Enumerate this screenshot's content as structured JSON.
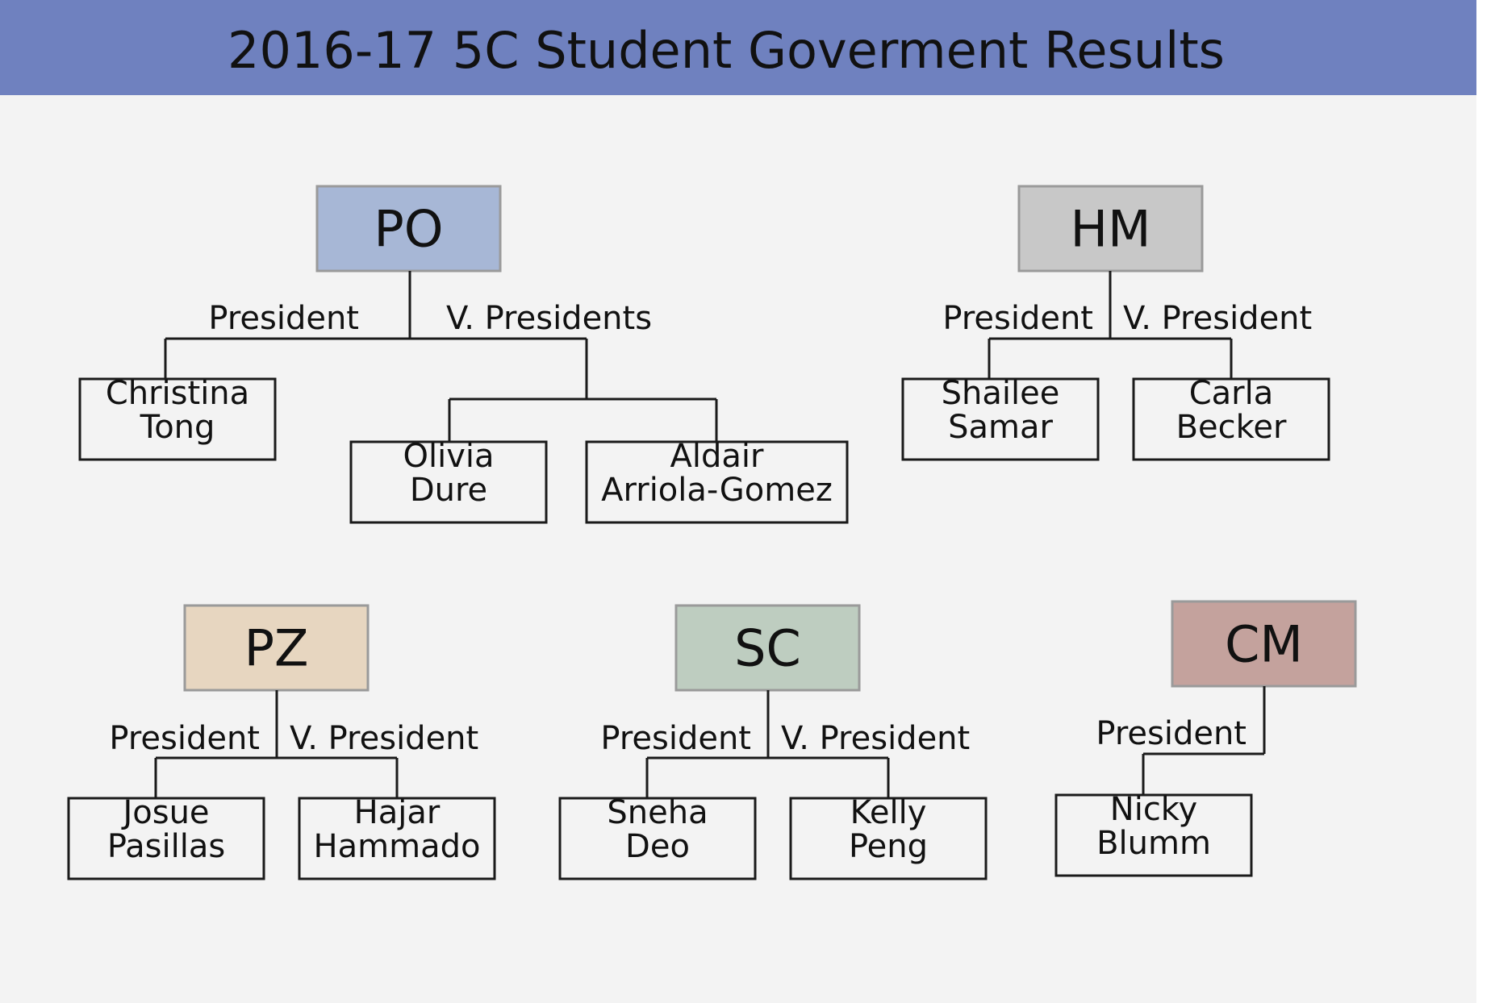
{
  "title": "2016-17 5C Student Goverment Results",
  "colors": {
    "header_band": "#6F81BF",
    "canvas": "#F3F3F3",
    "line": "#1A1A1A",
    "PO": "#A7B7D6",
    "HM": "#C8C8C8",
    "PZ": "#E7D6C0",
    "SC": "#BECDC0",
    "CM": "#C4A29D"
  },
  "schools": [
    {
      "id": "PO",
      "label": "PO",
      "roles": [
        {
          "id": "president",
          "label": "President",
          "members": [
            [
              "Christina",
              "Tong"
            ]
          ]
        },
        {
          "id": "vice-presidents",
          "label": "V. Presidents",
          "members": [
            [
              "Olivia",
              "Dure"
            ],
            [
              "Aldair",
              "Arriola-Gomez"
            ]
          ]
        }
      ]
    },
    {
      "id": "HM",
      "label": "HM",
      "roles": [
        {
          "id": "president",
          "label": "President",
          "members": [
            [
              "Shailee",
              "Samar"
            ]
          ]
        },
        {
          "id": "vice-president",
          "label": "V. President",
          "members": [
            [
              "Carla",
              "Becker"
            ]
          ]
        }
      ]
    },
    {
      "id": "PZ",
      "label": "PZ",
      "roles": [
        {
          "id": "president",
          "label": "President",
          "members": [
            [
              "Josue",
              "Pasillas"
            ]
          ]
        },
        {
          "id": "vice-president",
          "label": "V. President",
          "members": [
            [
              "Hajar",
              "Hammado"
            ]
          ]
        }
      ]
    },
    {
      "id": "SC",
      "label": "SC",
      "roles": [
        {
          "id": "president",
          "label": "President",
          "members": [
            [
              "Sneha",
              "Deo"
            ]
          ]
        },
        {
          "id": "vice-president",
          "label": "V. President",
          "members": [
            [
              "Kelly",
              "Peng"
            ]
          ]
        }
      ]
    },
    {
      "id": "CM",
      "label": "CM",
      "roles": [
        {
          "id": "president",
          "label": "President",
          "members": [
            [
              "Nicky",
              "Blumm"
            ]
          ]
        }
      ]
    }
  ]
}
